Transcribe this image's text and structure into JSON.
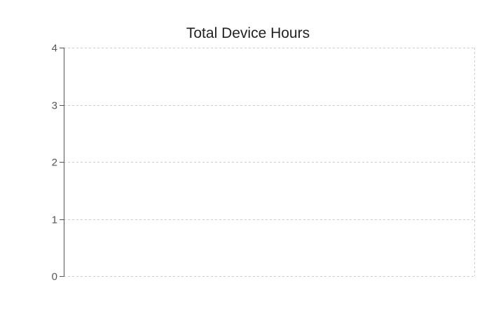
{
  "chart_data": {
    "type": "bar",
    "title": "Total Device Hours",
    "xlabel": "",
    "ylabel": "",
    "categories": [],
    "series": [],
    "ylim": [
      0,
      4
    ],
    "yticks": [
      0,
      1,
      2,
      3,
      4
    ],
    "grid": true,
    "legend": "none",
    "colors": {
      "grid": "#cccccc",
      "axis": "#555555",
      "text": "#555555",
      "title": "#222222"
    }
  }
}
